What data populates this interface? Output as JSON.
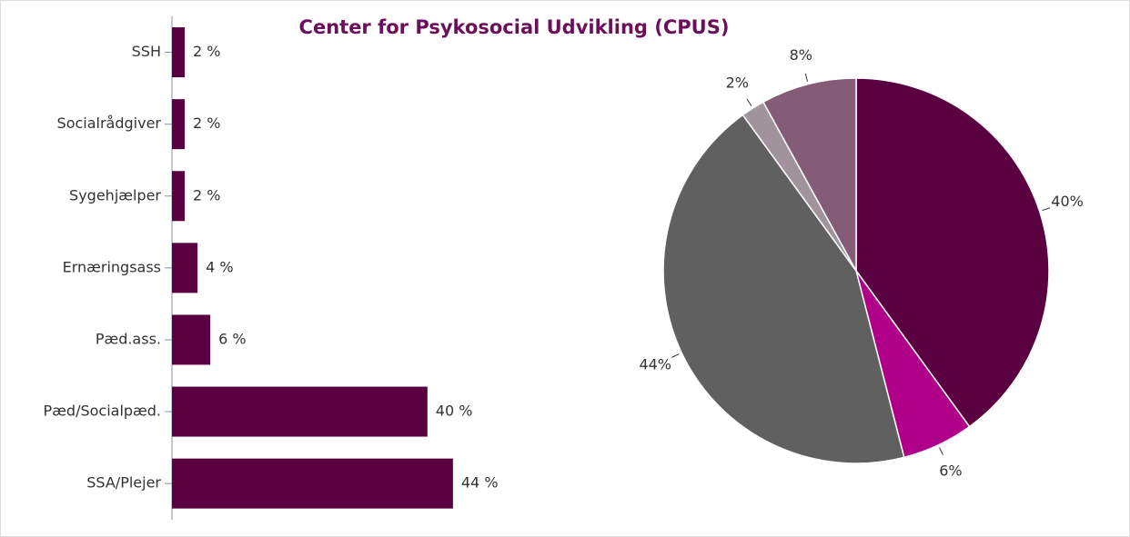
{
  "chart_data": [
    {
      "type": "bar",
      "title": "Center for Psykosocial Udvikling (CPUS)",
      "categories": [
        "SSH",
        "Socialrådgiver",
        "Sygehjælper",
        "Ernæringsass",
        "Pæd.ass.",
        "Pæd/Socialpæd.",
        "SSA/Plejer"
      ],
      "values": [
        2,
        2,
        2,
        4,
        6,
        40,
        44
      ],
      "value_labels": [
        "2 %",
        "2 %",
        "2 %",
        "4 %",
        "6 %",
        "40 %",
        "44 %"
      ],
      "color": "#5a0040"
    },
    {
      "type": "pie",
      "values": [
        40,
        6,
        44,
        2,
        8
      ],
      "value_labels": [
        "40%",
        "6%",
        "44%",
        "2%",
        "8%"
      ],
      "colors": [
        "#5a0040",
        "#b0008a",
        "#606060",
        "#a0939c",
        "#845c78"
      ]
    }
  ]
}
